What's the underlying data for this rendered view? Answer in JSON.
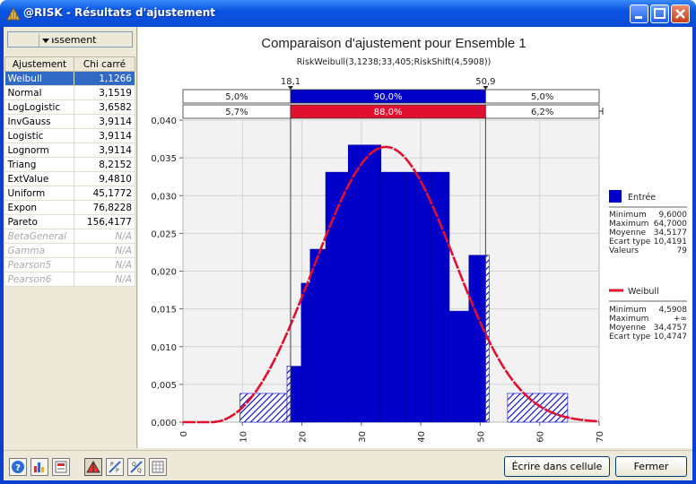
{
  "window": {
    "title": "@RISK - Résultats d'ajustement",
    "brand_color": "#0a54e3"
  },
  "left_panel": {
    "sort_label": "Classement",
    "columns": [
      "Ajustement",
      "Chi carré"
    ],
    "rows": [
      {
        "name": "Weibull",
        "value": "1,1266",
        "selected": true,
        "available": true
      },
      {
        "name": "Normal",
        "value": "3,1519",
        "selected": false,
        "available": true
      },
      {
        "name": "LogLogistic",
        "value": "3,6582",
        "selected": false,
        "available": true
      },
      {
        "name": "InvGauss",
        "value": "3,9114",
        "selected": false,
        "available": true
      },
      {
        "name": "Logistic",
        "value": "3,9114",
        "selected": false,
        "available": true
      },
      {
        "name": "Lognorm",
        "value": "3,9114",
        "selected": false,
        "available": true
      },
      {
        "name": "Triang",
        "value": "8,2152",
        "selected": false,
        "available": true
      },
      {
        "name": "ExtValue",
        "value": "9,4810",
        "selected": false,
        "available": true
      },
      {
        "name": "Uniform",
        "value": "45,1772",
        "selected": false,
        "available": true
      },
      {
        "name": "Expon",
        "value": "76,8228",
        "selected": false,
        "available": true
      },
      {
        "name": "Pareto",
        "value": "156,4177",
        "selected": false,
        "available": true
      },
      {
        "name": "BetaGeneral",
        "value": "N/A",
        "selected": false,
        "available": false
      },
      {
        "name": "Gamma",
        "value": "N/A",
        "selected": false,
        "available": false
      },
      {
        "name": "Pearson5",
        "value": "N/A",
        "selected": false,
        "available": false
      },
      {
        "name": "Pearson6",
        "value": "N/A",
        "selected": false,
        "available": false
      }
    ]
  },
  "chart_data": {
    "type": "bar",
    "title": "Comparaison d'ajustement pour Ensemble 1",
    "subtitle": "RiskWeibull(3,1238;33,405;RiskShift(4,5908))",
    "xlim": [
      0,
      70
    ],
    "ylim": [
      0,
      0.04
    ],
    "x_ticks": [
      "0",
      "10",
      "20",
      "30",
      "40",
      "50",
      "60",
      "70"
    ],
    "y_ticks": [
      "0,000",
      "0,005",
      "0,010",
      "0,015",
      "0,020",
      "0,025",
      "0,030",
      "0,035",
      "0,040"
    ],
    "delimiters": {
      "left": 18.1,
      "right": 50.9,
      "left_label": "18,1",
      "right_label": "50,9"
    },
    "band_input": [
      "5,0%",
      "90,0%",
      "5,0%"
    ],
    "band_fit": [
      "5,7%",
      "88,0%",
      "6,2%"
    ],
    "histogram": [
      {
        "x0": 9.6,
        "x1": 17.5,
        "y": 0.0038
      },
      {
        "x0": 17.5,
        "x1": 19.9,
        "y": 0.0074
      },
      {
        "x0": 19.9,
        "x1": 21.4,
        "y": 0.0184
      },
      {
        "x0": 21.4,
        "x1": 24.0,
        "y": 0.0229
      },
      {
        "x0": 24.0,
        "x1": 27.8,
        "y": 0.0331
      },
      {
        "x0": 27.8,
        "x1": 33.3,
        "y": 0.0367
      },
      {
        "x0": 33.3,
        "x1": 37.5,
        "y": 0.0331
      },
      {
        "x0": 37.5,
        "x1": 41.7,
        "y": 0.0331
      },
      {
        "x0": 41.7,
        "x1": 44.8,
        "y": 0.0331
      },
      {
        "x0": 44.8,
        "x1": 48.1,
        "y": 0.0147
      },
      {
        "x0": 48.1,
        "x1": 51.5,
        "y": 0.0221
      },
      {
        "x0": 54.6,
        "x1": 64.7,
        "y": 0.0038
      }
    ],
    "fit_curve": {
      "name": "Weibull",
      "shape": 3.1238,
      "scale": 33.405,
      "shift": 4.5908,
      "color": "#e01030"
    },
    "input_color": "#0000c8",
    "legend": {
      "input": {
        "name": "Entrée",
        "stats": [
          {
            "label": "Minimum",
            "value": "9,6000"
          },
          {
            "label": "Maximum",
            "value": "64,7000"
          },
          {
            "label": "Moyenne",
            "value": "34,5177"
          },
          {
            "label": "Ecart type",
            "value": "10,4191"
          },
          {
            "label": "Valeurs",
            "value": "79"
          }
        ]
      },
      "fit": {
        "name": "Weibull",
        "stats": [
          {
            "label": "Minimum",
            "value": "4,5908"
          },
          {
            "label": "Maximum",
            "value": "+∞"
          },
          {
            "label": "Moyenne",
            "value": "34,4757"
          },
          {
            "label": "Ecart type",
            "value": "10,4747"
          }
        ]
      }
    }
  },
  "bottom_bar": {
    "write_button": "Écrire dans cellule",
    "close_button": "Fermer",
    "tool_icons": [
      "help-icon",
      "chart-type-icon",
      "stats-icon",
      "density-icon",
      "pp-plot-icon",
      "qq-plot-icon",
      "table-icon"
    ]
  }
}
